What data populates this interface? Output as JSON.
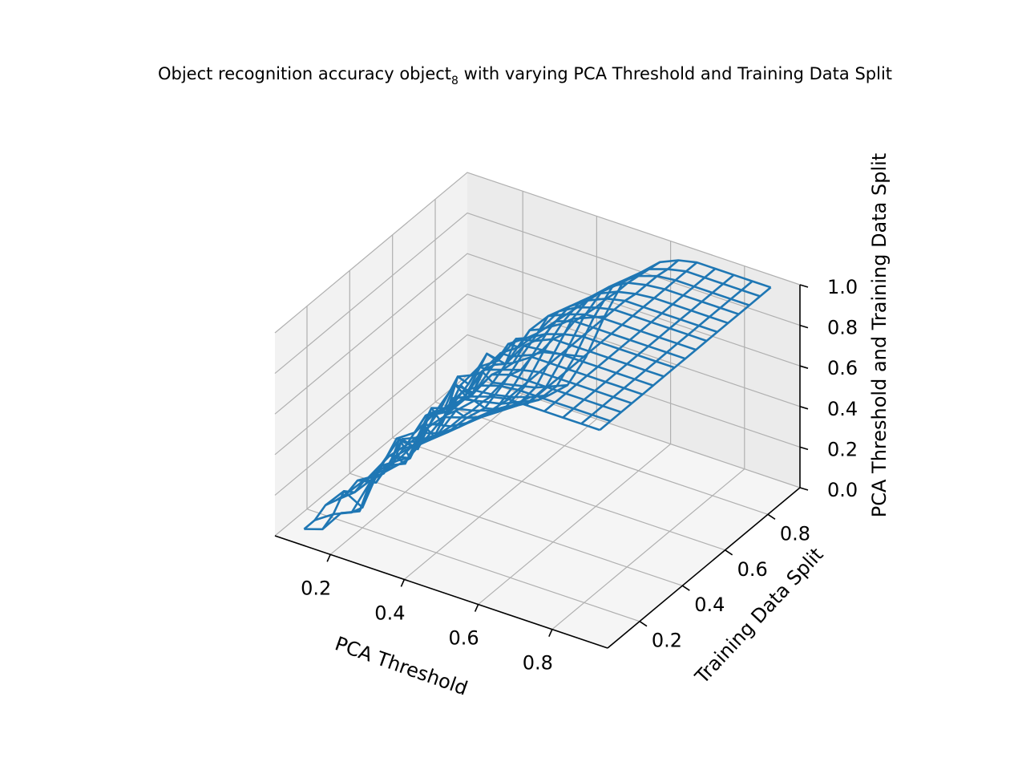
{
  "chart_data": {
    "type": "wireframe",
    "title": "Object recognition accuracy object",
    "title_subscript": "8",
    "title_suffix": " with varying PCA Threshold and Training Data Split",
    "xlabel": "PCA Threshold",
    "ylabel": "Training Data Split",
    "zlabel": "PCA Threshold and Training Data Split",
    "xlim": [
      0.05,
      0.95
    ],
    "ylim": [
      0.05,
      0.95
    ],
    "zlim": [
      0.0,
      1.0
    ],
    "xticks": [
      "0.2",
      "0.4",
      "0.6",
      "0.8"
    ],
    "yticks": [
      "0.2",
      "0.4",
      "0.6",
      "0.8"
    ],
    "zticks": [
      "0.0",
      "0.2",
      "0.4",
      "0.6",
      "0.8",
      "1.0"
    ],
    "x": [
      0.1,
      0.15,
      0.2,
      0.25,
      0.3,
      0.35,
      0.4,
      0.45,
      0.5,
      0.55,
      0.6,
      0.65,
      0.7,
      0.75,
      0.8,
      0.85,
      0.9
    ],
    "y": [
      0.1,
      0.15,
      0.2,
      0.25,
      0.3,
      0.35,
      0.4,
      0.45,
      0.5,
      0.55,
      0.6,
      0.65,
      0.7,
      0.75,
      0.8,
      0.85,
      0.9
    ],
    "z": [
      [
        0.02,
        0.05,
        0.16,
        0.2,
        0.42,
        0.62,
        0.68,
        0.8,
        0.88,
        0.95,
        0.98,
        1.0,
        1.0,
        1.0,
        1.0,
        1.0,
        1.0
      ],
      [
        0.02,
        0.08,
        0.12,
        0.3,
        0.4,
        0.55,
        0.72,
        0.78,
        0.9,
        0.96,
        0.99,
        1.0,
        1.0,
        1.0,
        1.0,
        1.0,
        1.0
      ],
      [
        0.05,
        0.15,
        0.1,
        0.34,
        0.5,
        0.48,
        0.7,
        0.86,
        0.85,
        0.97,
        1.0,
        1.0,
        1.0,
        1.0,
        1.0,
        1.0,
        1.0
      ],
      [
        0.03,
        0.1,
        0.2,
        0.28,
        0.36,
        0.6,
        0.65,
        0.76,
        0.92,
        0.95,
        0.98,
        1.0,
        1.0,
        1.0,
        1.0,
        1.0,
        1.0
      ],
      [
        0.02,
        0.12,
        0.18,
        0.38,
        0.42,
        0.58,
        0.78,
        0.82,
        0.9,
        0.94,
        1.0,
        1.0,
        1.0,
        1.0,
        1.0,
        1.0,
        1.0
      ],
      [
        0.04,
        0.06,
        0.22,
        0.3,
        0.52,
        0.55,
        0.7,
        0.88,
        0.86,
        0.98,
        0.99,
        1.0,
        1.0,
        1.0,
        1.0,
        1.0,
        1.0
      ],
      [
        0.01,
        0.1,
        0.14,
        0.36,
        0.4,
        0.62,
        0.74,
        0.8,
        0.94,
        0.96,
        1.0,
        1.0,
        1.0,
        1.0,
        1.0,
        1.0,
        1.0
      ],
      [
        0.02,
        0.08,
        0.2,
        0.26,
        0.48,
        0.52,
        0.68,
        0.84,
        0.9,
        0.95,
        0.98,
        1.0,
        1.0,
        1.0,
        1.0,
        1.0,
        1.0
      ],
      [
        0.03,
        0.05,
        0.18,
        0.32,
        0.44,
        0.6,
        0.72,
        0.78,
        0.88,
        0.97,
        1.0,
        1.0,
        1.0,
        1.0,
        1.0,
        1.0,
        1.0
      ],
      [
        0.02,
        0.07,
        0.15,
        0.3,
        0.38,
        0.5,
        0.66,
        0.82,
        0.92,
        0.96,
        0.99,
        1.0,
        1.0,
        1.0,
        1.0,
        1.0,
        1.0
      ],
      [
        0.01,
        0.05,
        0.12,
        0.22,
        0.3,
        0.45,
        0.62,
        0.78,
        0.9,
        0.95,
        0.98,
        1.0,
        1.0,
        1.0,
        1.0,
        1.0,
        1.0
      ],
      [
        0.01,
        0.04,
        0.1,
        0.18,
        0.25,
        0.4,
        0.58,
        0.75,
        0.88,
        0.94,
        0.98,
        1.0,
        1.0,
        1.0,
        1.0,
        1.0,
        1.0
      ],
      [
        0.01,
        0.03,
        0.08,
        0.15,
        0.22,
        0.35,
        0.55,
        0.72,
        0.86,
        0.93,
        0.97,
        0.99,
        1.0,
        1.0,
        1.0,
        1.0,
        1.0
      ],
      [
        0.0,
        0.03,
        0.06,
        0.12,
        0.18,
        0.3,
        0.5,
        0.7,
        0.84,
        0.92,
        0.97,
        0.99,
        1.0,
        1.0,
        1.0,
        1.0,
        1.0
      ],
      [
        0.0,
        0.02,
        0.05,
        0.1,
        0.15,
        0.26,
        0.45,
        0.66,
        0.82,
        0.9,
        0.96,
        0.99,
        1.0,
        1.0,
        1.0,
        1.0,
        1.0
      ],
      [
        0.0,
        0.02,
        0.04,
        0.08,
        0.12,
        0.22,
        0.4,
        0.62,
        0.8,
        0.88,
        0.95,
        0.98,
        1.0,
        1.0,
        1.0,
        1.0,
        1.0
      ],
      [
        0.0,
        0.01,
        0.03,
        0.06,
        0.1,
        0.18,
        0.35,
        0.58,
        0.78,
        0.86,
        0.94,
        0.98,
        1.0,
        1.0,
        1.0,
        1.0,
        1.0
      ]
    ],
    "grid": true,
    "line_color": "#1f77b4",
    "pane_colors": [
      "#f2f2f2",
      "#ebebeb",
      "#f5f5f5"
    ],
    "grid_color": "#b0b0b0"
  }
}
